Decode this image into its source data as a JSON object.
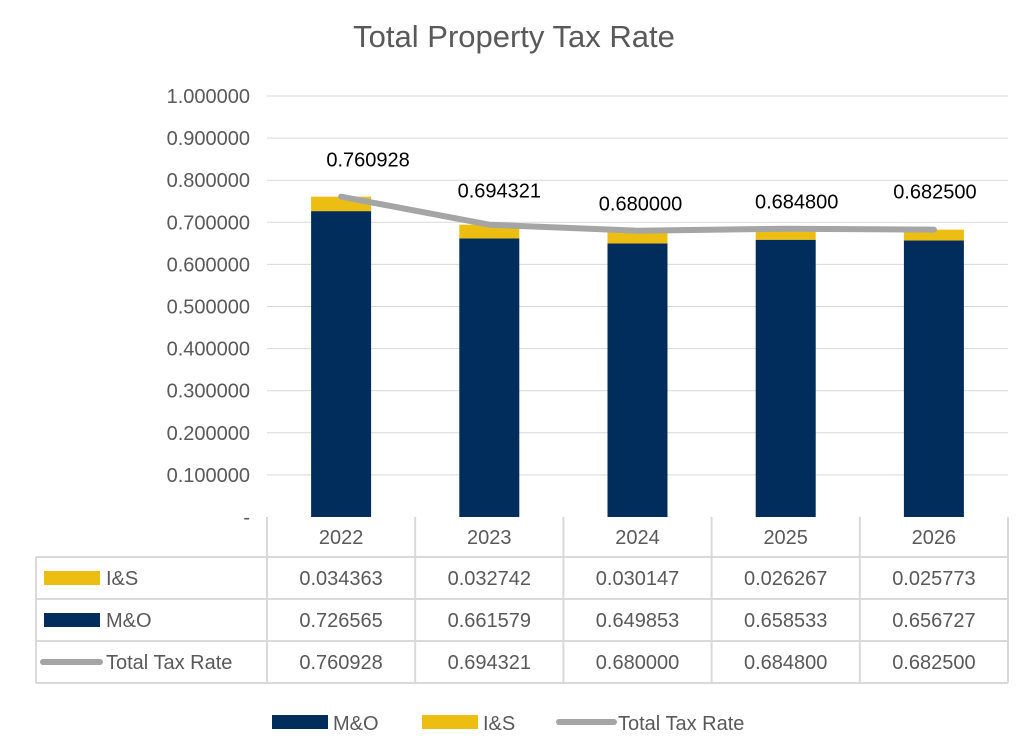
{
  "chart_data": {
    "type": "bar",
    "stacked": true,
    "title": "Total Property Tax Rate",
    "categories": [
      "2022",
      "2023",
      "2024",
      "2025",
      "2026"
    ],
    "ylim": [
      0,
      1.0
    ],
    "yticks": [
      "-",
      "0.100000",
      "0.200000",
      "0.300000",
      "0.400000",
      "0.500000",
      "0.600000",
      "0.700000",
      "0.800000",
      "0.900000",
      "1.000000"
    ],
    "grid": true,
    "legend_position": "bottom",
    "data_table": true,
    "series": [
      {
        "name": "M&O",
        "type": "bar",
        "color": "#002D5C",
        "values": [
          0.726565,
          0.661579,
          0.649853,
          0.658533,
          0.656727
        ],
        "labels": [
          "0.726565",
          "0.661579",
          "0.649853",
          "0.658533",
          "0.656727"
        ]
      },
      {
        "name": "I&S",
        "type": "bar",
        "color": "#EDBE12",
        "values": [
          0.034363,
          0.032742,
          0.030147,
          0.026267,
          0.025773
        ],
        "labels": [
          "0.034363",
          "0.032742",
          "0.030147",
          "0.026267",
          "0.025773"
        ]
      },
      {
        "name": "Total Tax Rate",
        "type": "line",
        "color": "#A5A5A5",
        "values": [
          0.760928,
          0.694321,
          0.68,
          0.6848,
          0.6825
        ],
        "labels": [
          "0.760928",
          "0.694321",
          "0.680000",
          "0.684800",
          "0.682500"
        ]
      }
    ],
    "table_row_order": [
      1,
      0,
      2
    ],
    "legend_order": [
      0,
      1,
      2
    ]
  }
}
